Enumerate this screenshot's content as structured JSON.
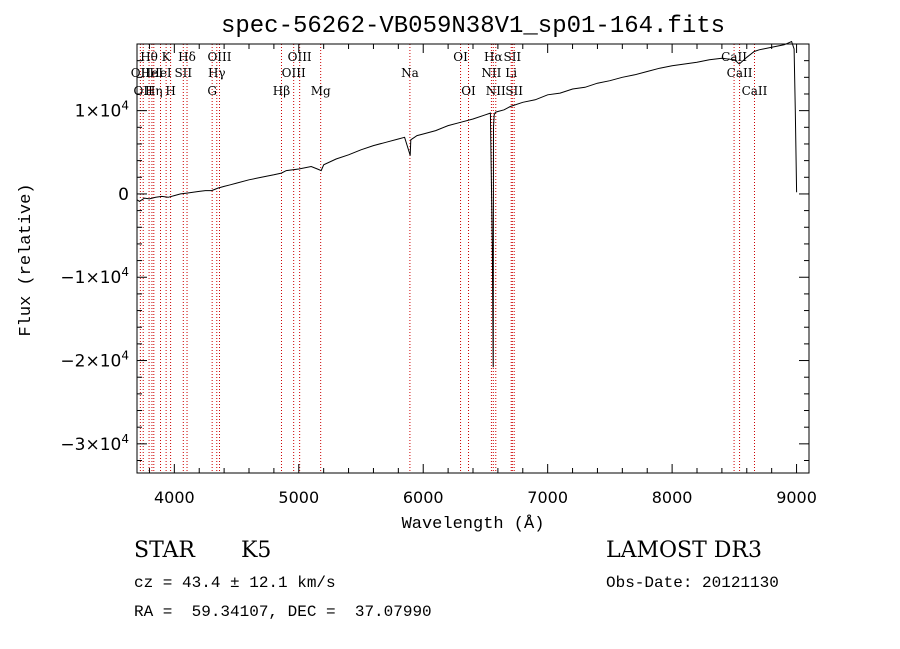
{
  "chart_data": {
    "type": "line",
    "title": "spec-56262-VB059N38V1_sp01-164.fits",
    "xlabel": "Wavelength (Å)",
    "ylabel": "Flux (relative)",
    "xlim": [
      3700,
      9100
    ],
    "ylim": [
      -33500,
      18000
    ],
    "x_ticks": [
      {
        "value": 4000,
        "label": "4000"
      },
      {
        "value": 5000,
        "label": "5000"
      },
      {
        "value": 6000,
        "label": "6000"
      },
      {
        "value": 7000,
        "label": "7000"
      },
      {
        "value": 8000,
        "label": "8000"
      },
      {
        "value": 9000,
        "label": "9000"
      }
    ],
    "y_ticks": [
      {
        "value": 10000,
        "mantissa": "1",
        "sign": "",
        "exp": "4"
      },
      {
        "value": 0,
        "mantissa": "0",
        "sign": "",
        "exp": ""
      },
      {
        "value": -10000,
        "mantissa": "1",
        "sign": "−",
        "exp": "4"
      },
      {
        "value": -20000,
        "mantissa": "2",
        "sign": "−",
        "exp": "4"
      },
      {
        "value": -30000,
        "mantissa": "3",
        "sign": "−",
        "exp": "4"
      }
    ],
    "series": [
      {
        "name": "flux",
        "color": "#000000",
        "x": [
          3700,
          3720,
          3760,
          3800,
          3850,
          3900,
          3950,
          4000,
          4050,
          4100,
          4150,
          4200,
          4250,
          4300,
          4350,
          4400,
          4450,
          4500,
          4600,
          4700,
          4800,
          4860,
          4900,
          5000,
          5100,
          5150,
          5180,
          5200,
          5300,
          5400,
          5500,
          5600,
          5700,
          5800,
          5850,
          5890,
          5895,
          5900,
          5950,
          6000,
          6100,
          6200,
          6300,
          6400,
          6500,
          6540,
          6555,
          6562,
          6565,
          6570,
          6580,
          6600,
          6650,
          6700,
          6800,
          6900,
          7000,
          7100,
          7200,
          7300,
          7400,
          7500,
          7600,
          7700,
          7800,
          7900,
          8000,
          8100,
          8200,
          8300,
          8400,
          8500,
          8540,
          8600,
          8660,
          8700,
          8800,
          8900,
          8960,
          8980,
          8990,
          9000
        ],
        "y": [
          -700,
          -900,
          -500,
          -600,
          -400,
          -300,
          -400,
          -200,
          0,
          100,
          200,
          300,
          400,
          400,
          700,
          900,
          1100,
          1300,
          1700,
          2000,
          2300,
          2500,
          2800,
          3000,
          3300,
          3000,
          2800,
          3500,
          4200,
          4700,
          5300,
          5800,
          6200,
          6600,
          6800,
          4900,
          4600,
          6500,
          7000,
          7200,
          7600,
          8200,
          8600,
          9000,
          9500,
          9700,
          -6000,
          -20800,
          8000,
          9500,
          9800,
          9900,
          10100,
          10500,
          11000,
          11300,
          11900,
          12100,
          12600,
          12800,
          13300,
          13600,
          14000,
          14300,
          14700,
          15100,
          15400,
          15600,
          15800,
          16100,
          16300,
          16100,
          15600,
          16400,
          17100,
          17300,
          17600,
          17900,
          18300,
          17400,
          10000,
          200
        ]
      }
    ],
    "lines": [
      {
        "wl": 3727,
        "label": "OII",
        "row": 2
      },
      {
        "wl": 3750,
        "label": "OII",
        "row": 3
      },
      {
        "wl": 3797,
        "label": "Hθ",
        "row": 1
      },
      {
        "wl": 3820,
        "label": "HeI",
        "row": 2
      },
      {
        "wl": 3835,
        "label": "Hη",
        "row": 3
      },
      {
        "wl": 3889,
        "label": "HeI",
        "row": 2
      },
      {
        "wl": 3934,
        "label": "K",
        "row": 1
      },
      {
        "wl": 3970,
        "label": "H",
        "row": 3
      },
      {
        "wl": 4072,
        "label": "SII",
        "row": 2
      },
      {
        "wl": 4102,
        "label": "Hδ",
        "row": 1
      },
      {
        "wl": 4304,
        "label": "G",
        "row": 3
      },
      {
        "wl": 4341,
        "label": "Hγ",
        "row": 2
      },
      {
        "wl": 4363,
        "label": "OIII",
        "row": 1
      },
      {
        "wl": 4861,
        "label": "Hβ",
        "row": 3
      },
      {
        "wl": 4959,
        "label": "OIII",
        "row": 2
      },
      {
        "wl": 5007,
        "label": "OIII",
        "row": 1
      },
      {
        "wl": 5176,
        "label": "Mg",
        "row": 3
      },
      {
        "wl": 5893,
        "label": "Na",
        "row": 2
      },
      {
        "wl": 6300,
        "label": "OI",
        "row": 1
      },
      {
        "wl": 6364,
        "label": "OI",
        "row": 3
      },
      {
        "wl": 6548,
        "label": "NII",
        "row": 2
      },
      {
        "wl": 6563,
        "label": "Hα",
        "row": 1
      },
      {
        "wl": 6583,
        "label": "NII",
        "row": 3
      },
      {
        "wl": 6707,
        "label": "Li",
        "row": 2
      },
      {
        "wl": 6716,
        "label": "SII",
        "row": 1
      },
      {
        "wl": 6731,
        "label": "SII",
        "row": 3
      },
      {
        "wl": 8498,
        "label": "CaII",
        "row": 1
      },
      {
        "wl": 8542,
        "label": "CaII",
        "row": 2
      },
      {
        "wl": 8662,
        "label": "CaII",
        "row": 3
      }
    ]
  },
  "info": {
    "class_label": "STAR",
    "subclass": "K5",
    "survey": "LAMOST DR3",
    "cz": "cz = 43.4 ± 12.1 km/s",
    "coords": "RA =  59.34107, DEC =  37.07990",
    "obs_date": "Obs-Date: 20121130"
  },
  "colors": {
    "axis": "#000000",
    "line_marker": "#cc0000",
    "spectrum": "#000000"
  }
}
